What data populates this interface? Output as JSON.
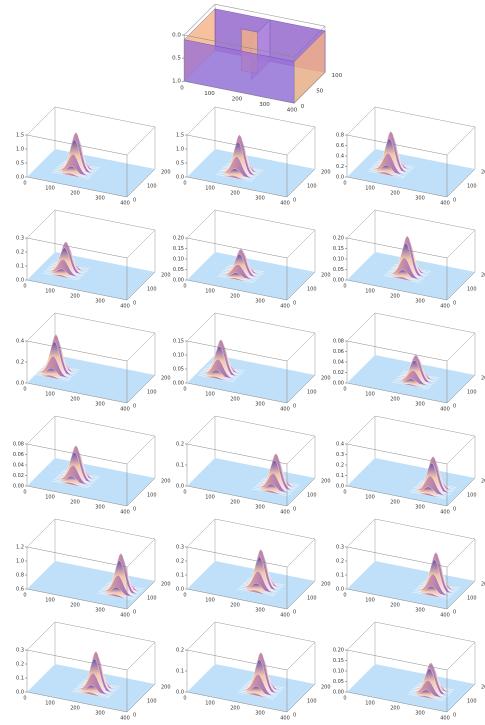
{
  "top": {
    "zticks": [
      "1.0",
      "0.5",
      "0.0"
    ],
    "xticks": [
      "0",
      "100",
      "200",
      "300",
      "400"
    ],
    "yticks": [
      "0",
      "50",
      "100"
    ]
  },
  "grid_xticks": [
    "0",
    "100",
    "200",
    "300",
    "400"
  ],
  "grid_yticks": [
    "0",
    "100",
    "200"
  ],
  "panels": [
    {
      "zticks": [
        "0.0",
        "0.5",
        "1.0",
        "1.5"
      ]
    },
    {
      "zticks": [
        "0.0",
        "0.5",
        "1.0",
        "1.5"
      ]
    },
    {
      "zticks": [
        "0.0",
        "0.2",
        "0.4",
        "0.6",
        "0.8"
      ]
    },
    {
      "zticks": [
        "0.0",
        "0.1",
        "0.2",
        "0.3"
      ]
    },
    {
      "zticks": [
        "0.00",
        "0.05",
        "0.10",
        "0.15",
        "0.20"
      ]
    },
    {
      "zticks": [
        "0.00",
        "0.05",
        "0.10",
        "0.15",
        "0.20"
      ]
    },
    {
      "zticks": [
        "0.0",
        "0.2",
        "0.4"
      ]
    },
    {
      "zticks": [
        "0.00",
        "0.05",
        "0.10",
        "0.15"
      ]
    },
    {
      "zticks": [
        "0.00",
        "0.02",
        "0.04",
        "0.06",
        "0.08"
      ]
    },
    {
      "zticks": [
        "0.00",
        "0.02",
        "0.04",
        "0.06",
        "0.08"
      ]
    },
    {
      "zticks": [
        "0.0",
        "0.1",
        "0.2"
      ]
    },
    {
      "zticks": [
        "0.0",
        "0.1",
        "0.2",
        "0.3",
        "0.4"
      ]
    },
    {
      "zticks": [
        "0.6",
        "0.8",
        "1.0",
        "1.2"
      ]
    },
    {
      "zticks": [
        "0.0",
        "0.1",
        "0.2",
        "0.3"
      ]
    },
    {
      "zticks": [
        "0.0",
        "0.1",
        "0.2",
        "0.3"
      ]
    },
    {
      "zticks": [
        "0.0",
        "0.1",
        "0.2",
        "0.3"
      ]
    },
    {
      "zticks": [
        "0.0",
        "0.1",
        "0.2"
      ]
    },
    {
      "zticks": [
        "0.00",
        "0.05",
        "0.10",
        "0.15",
        "0.20"
      ]
    }
  ]
}
